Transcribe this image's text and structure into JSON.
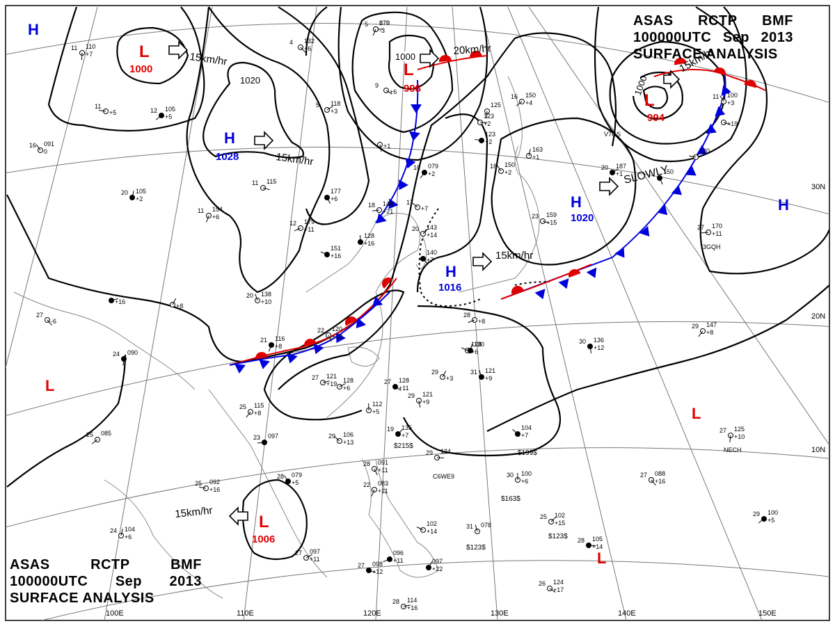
{
  "title": {
    "line1": [
      "ASAS",
      "RCTP",
      "BMF"
    ],
    "line2": [
      "100000UTC",
      "Sep",
      "2013"
    ],
    "line3": "SURFACE ANALYSIS"
  },
  "colors": {
    "high": "#0000dd",
    "low": "#e00000",
    "cold_front": "#0000dd",
    "warm_front": "#e00000",
    "isobar": "#000000",
    "grid": "#777777"
  },
  "longitude_labels": [
    "100E",
    "110E",
    "120E",
    "130E",
    "140E",
    "150E"
  ],
  "latitude_labels": [
    "30N",
    "20N",
    "10N"
  ],
  "pressure_centers": [
    {
      "type": "H",
      "value": ""
    },
    {
      "type": "L",
      "value": "1000"
    },
    {
      "type": "H",
      "value": "1028"
    },
    {
      "type": "L",
      "value": "998"
    },
    {
      "type": "L",
      "value": "994"
    },
    {
      "type": "H",
      "value": "1020"
    },
    {
      "type": "H",
      "value": "1016"
    },
    {
      "type": "H",
      "value": ""
    },
    {
      "type": "L",
      "value": ""
    },
    {
      "type": "L",
      "value": "1006"
    },
    {
      "type": "L",
      "value": ""
    },
    {
      "type": "L",
      "value": ""
    }
  ],
  "isobar_labels": [
    "1020",
    "1000",
    "1000"
  ],
  "movements": [
    "15km/hr",
    "15km/hr",
    "20km/hr",
    "15km/hr",
    "SLOWLY",
    "15km/hr",
    "15km/hr"
  ],
  "ship_ids": [
    "C6WE9",
    "NECH",
    "3GQH",
    "V7GS"
  ],
  "stations": [
    {
      "t": "5",
      "p": "070",
      "tend": "-3"
    },
    {
      "t": "4",
      "p": "132",
      "tend": "+6"
    },
    {
      "t": "11",
      "p": "110",
      "tend": "+7"
    },
    {
      "t": "12",
      "p": "105",
      "tend": "+5"
    },
    {
      "t": "11",
      "p": "",
      "tend": "+5"
    },
    {
      "t": "16",
      "p": "091",
      "tend": "0"
    },
    {
      "t": "20",
      "p": "105",
      "tend": "+2"
    },
    {
      "t": "5",
      "p": "118",
      "tend": "+3"
    },
    {
      "t": "11",
      "p": "115",
      "tend": ""
    },
    {
      "t": "",
      "p": "177",
      "tend": "+6"
    },
    {
      "t": "11",
      "p": "154",
      "tend": "+6"
    },
    {
      "t": "12",
      "p": "179",
      "tend": "+11"
    },
    {
      "t": "",
      "p": "151",
      "tend": "+16"
    },
    {
      "t": "20",
      "p": "138",
      "tend": "+10"
    },
    {
      "t": "",
      "p": "",
      "tend": "+8"
    },
    {
      "t": "",
      "p": "",
      "tend": "+16"
    },
    {
      "t": "9",
      "p": "",
      "tend": "+6"
    },
    {
      "t": "",
      "p": "",
      "tend": "+1"
    },
    {
      "t": "10",
      "p": "079",
      "tend": "+2"
    },
    {
      "t": "18",
      "p": "146",
      "tend": "+21"
    },
    {
      "t": "17",
      "p": "",
      "tend": "+7"
    },
    {
      "t": "",
      "p": "128",
      "tend": "+16"
    },
    {
      "t": "20",
      "p": "143",
      "tend": "+14"
    },
    {
      "t": "",
      "p": "123",
      "tend": "+2"
    },
    {
      "t": "",
      "p": "140",
      "tend": "+7"
    },
    {
      "t": "",
      "p": "125",
      "tend": ""
    },
    {
      "t": "16",
      "p": "150",
      "tend": "+4"
    },
    {
      "t": "",
      "p": "123",
      "tend": "+2"
    },
    {
      "t": "18",
      "p": "150",
      "tend": "+2"
    },
    {
      "t": "",
      "p": "163",
      "tend": "+1"
    },
    {
      "t": "20",
      "p": "187",
      "tend": "+1"
    },
    {
      "t": "23",
      "p": "159",
      "tend": "+15"
    },
    {
      "t": "22",
      "p": "120",
      "tend": "+18"
    },
    {
      "t": "21",
      "p": "116",
      "tend": "+8"
    },
    {
      "t": "28",
      "p": "",
      "tend": "+8"
    },
    {
      "t": "",
      "p": "128",
      "tend": "+6"
    },
    {
      "t": "31",
      "p": "121",
      "tend": "+9"
    },
    {
      "t": "29",
      "p": "",
      "tend": "+3"
    },
    {
      "t": "27",
      "p": "121",
      "tend": "+19"
    },
    {
      "t": "27",
      "p": "128",
      "tend": "+11"
    },
    {
      "t": "29",
      "p": "121",
      "tend": "+9"
    },
    {
      "t": "25",
      "p": "115",
      "tend": "+8"
    },
    {
      "t": "23",
      "p": "097",
      "tend": ""
    },
    {
      "t": "29",
      "p": "106",
      "tend": "+13"
    },
    {
      "t": "",
      "p": "112",
      "tend": "+5"
    },
    {
      "t": "19",
      "p": "135",
      "tend": "+7"
    },
    {
      "t": "29",
      "p": "134",
      "tend": ""
    },
    {
      "t": "27",
      "p": "",
      "tend": "-6"
    },
    {
      "t": "24",
      "p": "090",
      "tend": ""
    },
    {
      "t": "25",
      "p": "085",
      "tend": ""
    },
    {
      "t": "25",
      "p": "092",
      "tend": "+16"
    },
    {
      "t": "28",
      "p": "079",
      "tend": "+5"
    },
    {
      "t": "24",
      "p": "104",
      "tend": "+6"
    },
    {
      "t": "27",
      "p": "097",
      "tend": "+11"
    },
    {
      "t": "27",
      "p": "098",
      "tend": "+12"
    },
    {
      "t": "28",
      "p": "091",
      "tend": "+11"
    },
    {
      "t": "22",
      "p": "083",
      "tend": "+11"
    },
    {
      "t": "",
      "p": "096",
      "tend": "+11"
    },
    {
      "t": "",
      "p": "102",
      "tend": "+14"
    },
    {
      "t": "31",
      "p": "078",
      "tend": ""
    },
    {
      "t": "",
      "p": "097",
      "tend": "+22"
    },
    {
      "t": "28",
      "p": "114",
      "tend": "+16"
    },
    {
      "t": "26",
      "p": "124",
      "tend": "+17"
    },
    {
      "t": "30",
      "p": "136",
      "tend": "+12"
    },
    {
      "t": "29",
      "p": "147",
      "tend": "+8"
    },
    {
      "t": "27",
      "p": "170",
      "tend": "+11"
    },
    {
      "t": "",
      "p": "104",
      "tend": "+7"
    },
    {
      "t": "30",
      "p": "100",
      "tend": "+6"
    },
    {
      "t": "25",
      "p": "102",
      "tend": "+15"
    },
    {
      "t": "28",
      "p": "105",
      "tend": "+14"
    },
    {
      "t": "27",
      "p": "088",
      "tend": "+16"
    },
    {
      "t": "27",
      "p": "125",
      "tend": "+10"
    },
    {
      "t": "29",
      "p": "100",
      "tend": "+5"
    },
    {
      "t": "",
      "p": "120",
      "tend": ""
    },
    {
      "t": "11",
      "p": "100",
      "tend": "+3"
    },
    {
      "t": "",
      "p": "130",
      "tend": ""
    },
    {
      "t": "",
      "p": "128",
      "tend": "+6"
    },
    {
      "t": "",
      "p": "",
      "tend": "+19"
    },
    {
      "t": "",
      "p": "150",
      "tend": ""
    },
    {
      "t": "",
      "p": "179",
      "tend": ""
    }
  ],
  "visibility_codes": [
    "$215$",
    "$199$",
    "$163$",
    "$123$",
    "$123$"
  ]
}
